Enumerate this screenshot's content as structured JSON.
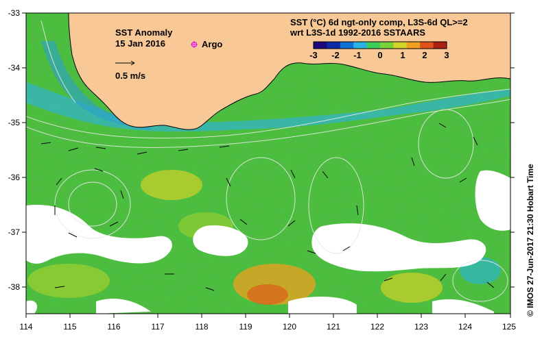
{
  "map": {
    "title": "SST Anomaly",
    "date": "15 Jan 2016",
    "argo_label": "Argo",
    "scale_label": "0.5 m/s",
    "header_line1": "SST (°C) 6d ngt-only comp, L3S-6d QL>=2",
    "header_line2": "wrt L3S-1d 1992-2016 SSTAARS",
    "colorbar": {
      "ticks": [
        "-3",
        "-2",
        "-1",
        "0",
        "1",
        "2",
        "3"
      ],
      "colors": [
        "#1a0a7a",
        "#0a2aa8",
        "#1070d8",
        "#28b4e0",
        "#3ccc5a",
        "#78d23a",
        "#d2d228",
        "#f0a020",
        "#e05018",
        "#a82010"
      ]
    },
    "x_ticks": [
      "114",
      "115",
      "116",
      "117",
      "118",
      "119",
      "120",
      "121",
      "122",
      "123",
      "124",
      "125"
    ],
    "y_ticks": [
      "-33",
      "-34",
      "-35",
      "-36",
      "-37",
      "-38"
    ],
    "credit": "© IMOS 27-Jun-2017 21:30 Hobart Time",
    "colors": {
      "land": "#f8c896",
      "ocean": "#48c040",
      "cloud": "#ffffff",
      "argo": "#e020e0"
    }
  }
}
